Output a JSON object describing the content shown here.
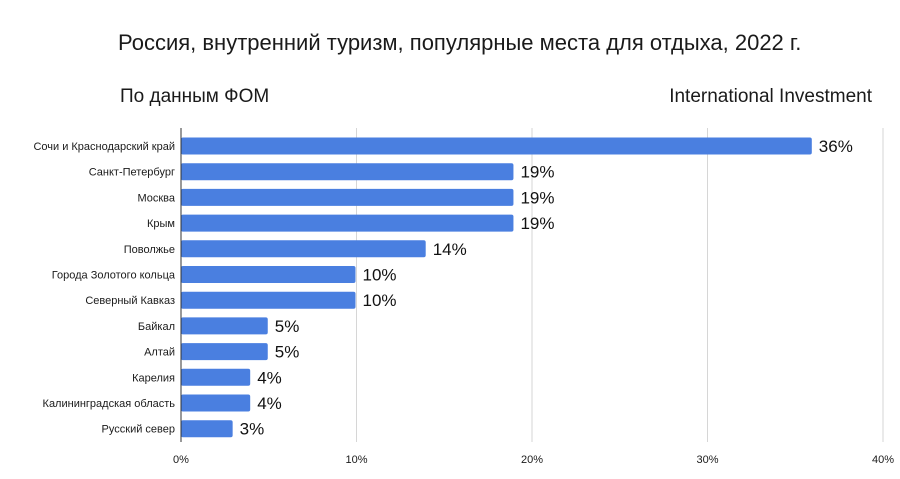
{
  "chart_data": {
    "type": "bar",
    "orientation": "horizontal",
    "title": "Россия, внутренний туризм, популярные места для отдыха, 2022 г.",
    "source_left": "По данным ФОМ",
    "source_right": "International Investment",
    "categories": [
      "Сочи и Краснодарский край",
      "Санкт-Петербург",
      "Москва",
      "Крым",
      "Поволжье",
      "Города Золотого кольца",
      "Северный Кавказ",
      "Байкал",
      "Алтай",
      "Карелия",
      "Калининградская область",
      "Русский север"
    ],
    "values": [
      36,
      19,
      19,
      19,
      14,
      10,
      10,
      5,
      5,
      4,
      4,
      3
    ],
    "data_labels": [
      "36%",
      "19%",
      "19%",
      "19%",
      "14%",
      "10%",
      "10%",
      "5%",
      "5%",
      "4%",
      "4%",
      "3%"
    ],
    "xlim": [
      0,
      40
    ],
    "xticks": [
      0,
      10,
      20,
      30,
      40
    ],
    "xtick_labels": [
      "0%",
      "10%",
      "20%",
      "30%",
      "40%"
    ],
    "grid": "vertical",
    "bar_color": "#4a7fe0"
  }
}
